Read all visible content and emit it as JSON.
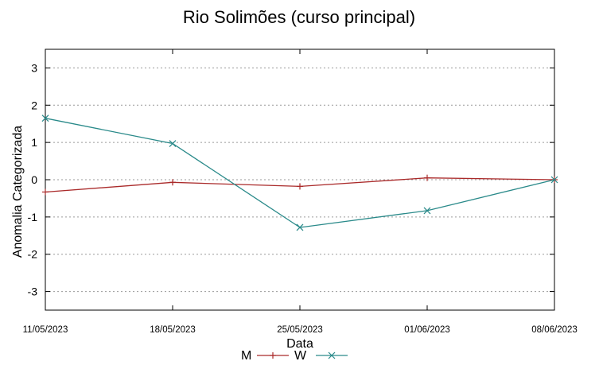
{
  "chart_data": {
    "type": "line",
    "title": "Rio Solimões (curso principal)",
    "xlabel": "Data",
    "ylabel": "Anomalia Categorizada",
    "categories": [
      "11/05/2023",
      "18/05/2023",
      "25/05/2023",
      "01/06/2023",
      "08/06/2023"
    ],
    "yticks": [
      "3",
      "2",
      "1",
      "0",
      "-1",
      "-2",
      "-3"
    ],
    "ylim": [
      -3.5,
      3.5
    ],
    "grid": true,
    "legend_position": "bottom",
    "series": [
      {
        "name": "M",
        "color": "#aa2a2a",
        "marker": "plus",
        "values": [
          -0.33,
          -0.07,
          -0.18,
          0.05,
          0.0
        ]
      },
      {
        "name": "W",
        "color": "#2a8a8a",
        "marker": "cross",
        "values": [
          1.65,
          0.97,
          -1.28,
          -0.83,
          0.0
        ]
      }
    ]
  }
}
